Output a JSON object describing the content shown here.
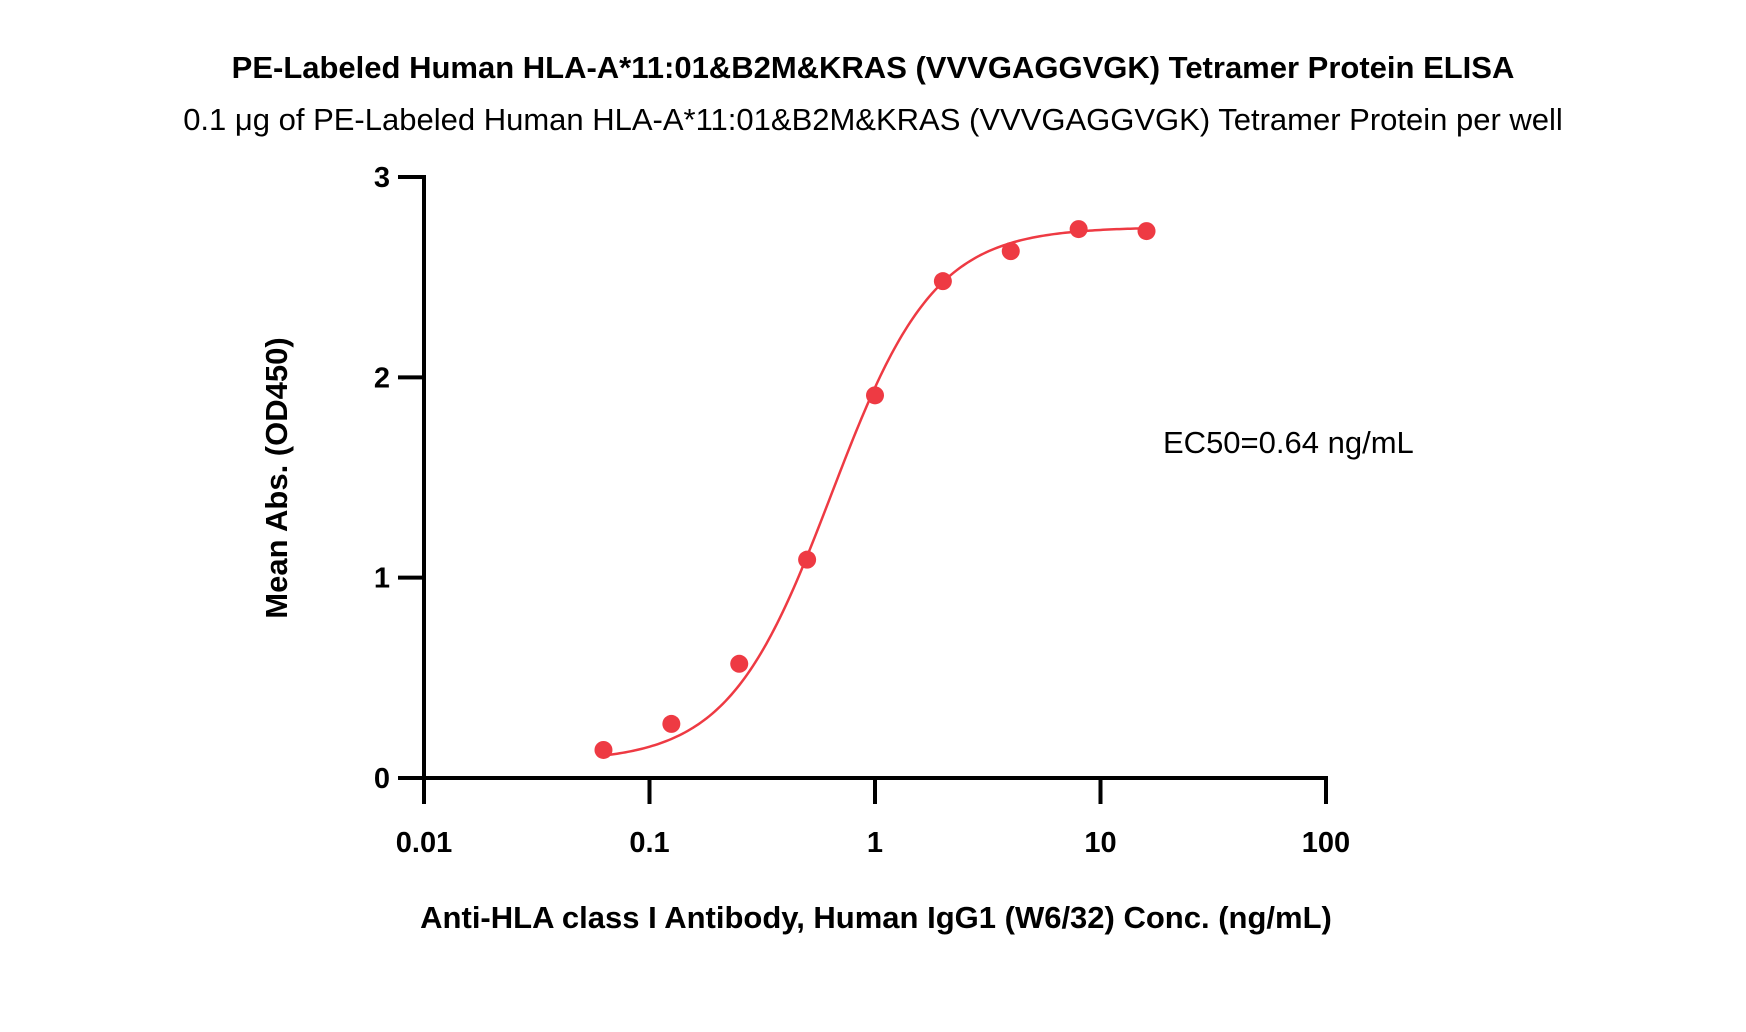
{
  "chart_data": {
    "type": "scatter",
    "title": "PE-Labeled Human HLA-A*11:01&B2M&KRAS (VVVGAGGVGK) Tetramer Protein ELISA",
    "subtitle": "0.1 μg of PE-Labeled Human HLA-A*11:01&B2M&KRAS (VVVGAGGVGK) Tetramer Protein per well",
    "xlabel": "Anti-HLA class I Antibody, Human IgG1 (W6/32) Conc. (ng/mL)",
    "ylabel": "Mean Abs. (OD450)",
    "xscale": "log",
    "xlim": [
      0.01,
      100
    ],
    "ylim": [
      0,
      3
    ],
    "xticks": [
      0.01,
      0.1,
      1,
      10,
      100
    ],
    "xtick_labels": [
      "0.01",
      "0.1",
      "1",
      "10",
      "100"
    ],
    "yticks": [
      0,
      1,
      2,
      3
    ],
    "ytick_labels": [
      "0",
      "1",
      "2",
      "3"
    ],
    "grid": false,
    "annotation": "EC50=0.64 ng/mL",
    "series": [
      {
        "color": "#ee3a43",
        "x": [
          0.0625,
          0.125,
          0.25,
          0.5,
          1,
          2,
          4,
          8,
          16
        ],
        "y": [
          0.14,
          0.27,
          0.57,
          1.09,
          1.91,
          2.48,
          2.63,
          2.74,
          2.73
        ],
        "fit": {
          "model": "4PL",
          "bottom": 0.08,
          "top": 2.75,
          "ec50": 0.64,
          "hill": 1.9
        }
      }
    ]
  }
}
